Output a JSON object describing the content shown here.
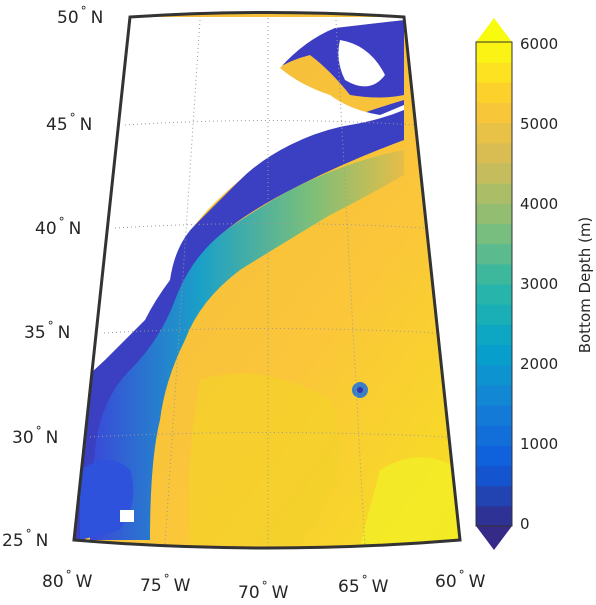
{
  "map": {
    "projection": "conic",
    "region": "Western North Atlantic",
    "longitude_range": [
      -80,
      -60
    ],
    "latitude_range": [
      25,
      50
    ],
    "land_color": "#ffffff",
    "frame_color": "#333333",
    "graticule_style": "dotted",
    "lat_labels": [
      {
        "deg": "50",
        "hemi": "N"
      },
      {
        "deg": "45",
        "hemi": "N"
      },
      {
        "deg": "40",
        "hemi": "N"
      },
      {
        "deg": "35",
        "hemi": "N"
      },
      {
        "deg": "30",
        "hemi": "N"
      },
      {
        "deg": "25",
        "hemi": "N"
      }
    ],
    "lon_labels": [
      {
        "deg": "80",
        "hemi": "W"
      },
      {
        "deg": "75",
        "hemi": "W"
      },
      {
        "deg": "70",
        "hemi": "W"
      },
      {
        "deg": "65",
        "hemi": "W"
      },
      {
        "deg": "60",
        "hemi": "W"
      }
    ]
  },
  "colorbar": {
    "label": "Bottom Depth (m)",
    "ticks": [
      "0",
      "1000",
      "2000",
      "3000",
      "4000",
      "5000",
      "6000"
    ],
    "range": [
      0,
      6000
    ],
    "levels": 24,
    "colormap": "parula",
    "extend": "both",
    "colors": [
      "#352a87",
      "#0f5cdd",
      "#1481d6",
      "#06a4ca",
      "#2eb7a4",
      "#87bf77",
      "#d1bb59",
      "#fec832",
      "#f9fb0e"
    ]
  }
}
